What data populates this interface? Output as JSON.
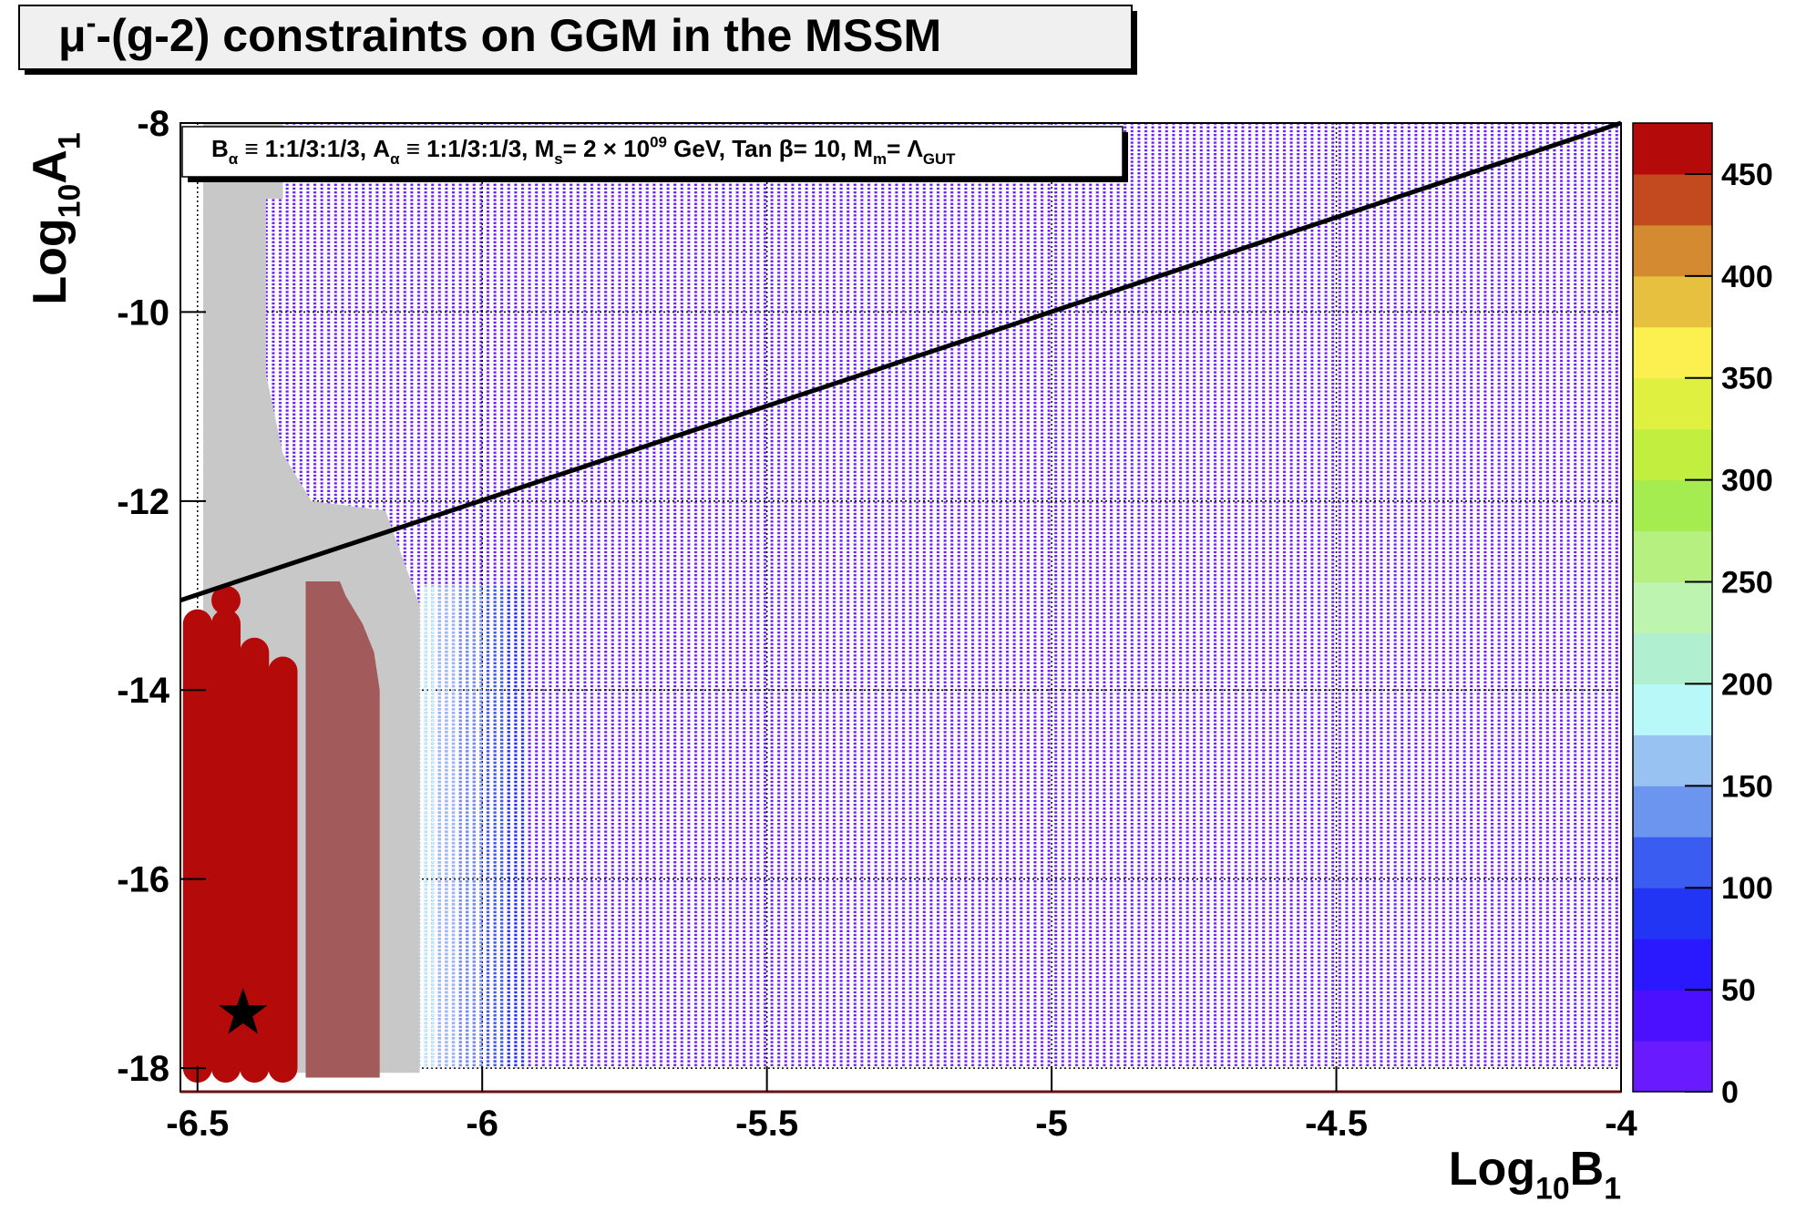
{
  "chart_data": {
    "type": "scatter",
    "title": [
      {
        "text": "μ"
      },
      {
        "text": "-",
        "shift": "super"
      },
      {
        "text": "-(g-2) constraints on GGM in the MSSM"
      }
    ],
    "x_label": [
      {
        "text": "Log"
      },
      {
        "text": "10",
        "shift": "sub"
      },
      {
        "text": "B"
      },
      {
        "text": "1",
        "shift": "sub"
      }
    ],
    "y_label": [
      {
        "text": "Log"
      },
      {
        "text": "10",
        "shift": "sub"
      },
      {
        "text": "A"
      },
      {
        "text": "1",
        "shift": "sub"
      }
    ],
    "annotation": [
      {
        "text": "B"
      },
      {
        "text": "α",
        "shift": "sub"
      },
      {
        "text": " ≡ 1:1/3:1/3, A"
      },
      {
        "text": "α",
        "shift": "sub"
      },
      {
        "text": " ≡ 1:1/3:1/3, M"
      },
      {
        "text": "s",
        "shift": "sub"
      },
      {
        "text": "= 2 × 10"
      },
      {
        "text": "09",
        "shift": "super"
      },
      {
        "text": " GeV, Tan β= 10, M"
      },
      {
        "text": "m",
        "shift": "sub"
      },
      {
        "text": "= Λ"
      },
      {
        "text": "GUT",
        "shift": "sub"
      }
    ],
    "xlim": [
      -6.53,
      -4
    ],
    "xticks": [
      -6.5,
      -6,
      -5.5,
      -5,
      -4.5,
      -4
    ],
    "ylim": [
      -18.25,
      -8
    ],
    "yticks": [
      -8,
      -10,
      -12,
      -14,
      -16,
      -18
    ],
    "grid": true,
    "colorbar": {
      "zlim": [
        0,
        475
      ],
      "zticks": [
        0,
        50,
        100,
        150,
        200,
        250,
        300,
        350,
        400,
        450
      ],
      "colors": [
        "#6a1aff",
        "#4a10ff",
        "#2a18ff",
        "#2235f5",
        "#3a5cf0",
        "#6b95ee",
        "#98c2f2",
        "#b8f8f8",
        "#b0f0d0",
        "#bdf5b0",
        "#b5f080",
        "#a5ec50",
        "#c2ee40",
        "#e0f040",
        "#fbf050",
        "#e8c040",
        "#d48a30",
        "#c24a1e",
        "#b40a0a"
      ]
    },
    "dot_regions": [
      {
        "x": [
          -6.38,
          -4
        ],
        "y": [
          -18,
          -8
        ],
        "value": 10
      },
      {
        "x": [
          -6.11,
          -6.08
        ],
        "y": [
          -18,
          -12.9
        ],
        "value": 180
      },
      {
        "x": [
          -6.08,
          -6.04
        ],
        "y": [
          -18,
          -12.9
        ],
        "value": 160
      },
      {
        "x": [
          -6.04,
          -6.0
        ],
        "y": [
          -18,
          -12.9
        ],
        "value": 130
      },
      {
        "x": [
          -6.0,
          -5.96
        ],
        "y": [
          -18,
          -12.9
        ],
        "value": 110
      },
      {
        "x": [
          -5.96,
          -5.92
        ],
        "y": [
          -18,
          -12.9
        ],
        "value": 85
      }
    ],
    "regions": [
      {
        "color": "#c8c8c8",
        "x": [
          -6.49,
          -6.35,
          -6.35,
          -6.38,
          -6.38,
          -6.35,
          -6.3,
          -6.17,
          -6.14,
          -6.11,
          -6.11,
          -6.49
        ],
        "y": [
          -8,
          -8,
          -8.8,
          -8.8,
          -10.65,
          -11.5,
          -12.0,
          -12.1,
          -12.6,
          -13.1,
          -18.05,
          -18.05
        ]
      },
      {
        "color": "#a35a5a",
        "x": [
          -6.31,
          -6.25,
          -6.24,
          -6.21,
          -6.19,
          -6.18,
          -6.18,
          -6.31
        ],
        "y": [
          -12.85,
          -12.85,
          -13.0,
          -13.3,
          -13.6,
          -14.0,
          -18.1,
          -18.1
        ]
      }
    ],
    "stacks": [
      {
        "x": -6.5,
        "y": [
          -18,
          -13.3
        ],
        "value": 460
      },
      {
        "x": -6.45,
        "y": [
          -18,
          -13.3
        ],
        "value": 460
      },
      {
        "x": -6.4,
        "y": [
          -18,
          -13.6
        ],
        "value": 460
      },
      {
        "x": -6.35,
        "y": [
          -18,
          -13.8
        ],
        "value": 460
      },
      {
        "x": -6.45,
        "y": [
          -13.05,
          -13.05
        ],
        "value": 460
      }
    ],
    "marker": {
      "x": -6.42,
      "y": -17.42
    },
    "line": {
      "x": [
        -6.53,
        -4
      ],
      "y": [
        -13.05,
        -8
      ]
    }
  }
}
